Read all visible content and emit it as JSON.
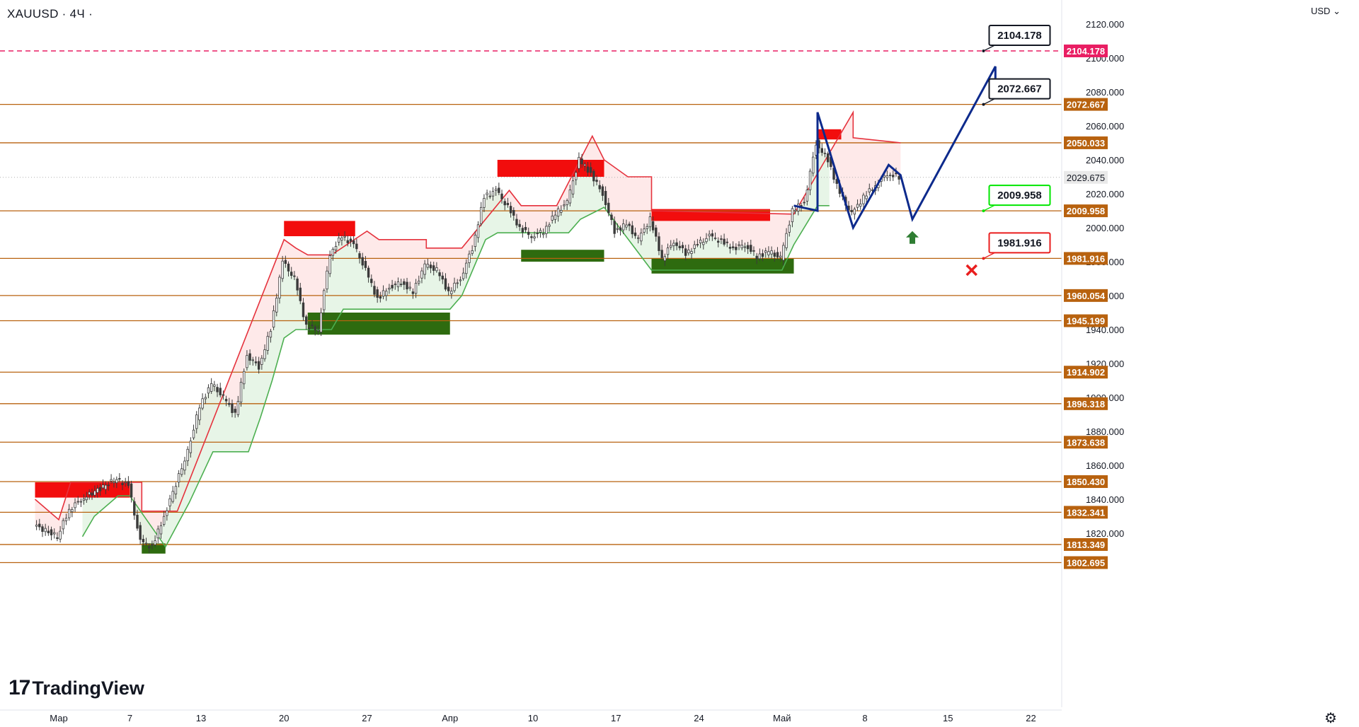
{
  "header": {
    "symbol": "XAUUSD · 4Ч ·",
    "currency": "USD",
    "logo_mark": "17",
    "logo_text": "TradingView",
    "settings_icon": "gear-icon"
  },
  "chart_data": {
    "type": "candlestick",
    "symbol": "XAUUSD",
    "timeframe": "4Ч",
    "currency": "USD",
    "y_range": [
      1800,
      2128
    ],
    "x_ticks": [
      {
        "label": "Мар",
        "date": "2023-03-01"
      },
      {
        "label": "7",
        "date": "2023-03-07"
      },
      {
        "label": "13",
        "date": "2023-03-13"
      },
      {
        "label": "20",
        "date": "2023-03-20"
      },
      {
        "label": "27",
        "date": "2023-03-27"
      },
      {
        "label": "Апр",
        "date": "2023-04-03"
      },
      {
        "label": "10",
        "date": "2023-04-10"
      },
      {
        "label": "17",
        "date": "2023-04-17"
      },
      {
        "label": "24",
        "date": "2023-04-24"
      },
      {
        "label": "Май",
        "date": "2023-05-01"
      },
      {
        "label": "8",
        "date": "2023-05-08"
      },
      {
        "label": "15",
        "date": "2023-05-15"
      },
      {
        "label": "22",
        "date": "2023-05-22"
      }
    ],
    "y_ticks": [
      "2120.000",
      "2100.000",
      "2080.000",
      "2060.000",
      "2040.000",
      "2020.000",
      "2000.000",
      "1980.000",
      "1960.000",
      "1940.000",
      "1920.000",
      "1900.000",
      "1880.000",
      "1860.000",
      "1840.000",
      "1820.000"
    ],
    "current_price": {
      "value": 2029.675,
      "label": "2029.675",
      "color": "#9e9e9e"
    },
    "levels": [
      {
        "value": 2104.178,
        "label": "2104.178",
        "style": "dashed",
        "color": "#e91e63"
      },
      {
        "value": 2072.667,
        "label": "2072.667",
        "style": "solid",
        "color": "#b8620f"
      },
      {
        "value": 2050.033,
        "label": "2050.033",
        "style": "solid",
        "color": "#b8620f"
      },
      {
        "value": 2009.958,
        "label": "2009.958",
        "style": "solid",
        "color": "#b8620f"
      },
      {
        "value": 1981.916,
        "label": "1981.916",
        "style": "solid",
        "color": "#b8620f"
      },
      {
        "value": 1960.054,
        "label": "1960.054",
        "style": "solid",
        "color": "#b8620f"
      },
      {
        "value": 1945.199,
        "label": "1945.199",
        "style": "solid",
        "color": "#b8620f"
      },
      {
        "value": 1914.902,
        "label": "1914.902",
        "style": "solid",
        "color": "#b8620f"
      },
      {
        "value": 1896.318,
        "label": "1896.318",
        "style": "solid",
        "color": "#b8620f"
      },
      {
        "value": 1873.638,
        "label": "1873.638",
        "style": "solid",
        "color": "#b8620f"
      },
      {
        "value": 1850.43,
        "label": "1850.430",
        "style": "solid",
        "color": "#b8620f"
      },
      {
        "value": 1832.341,
        "label": "1832.341",
        "style": "solid",
        "color": "#b8620f"
      },
      {
        "value": 1813.349,
        "label": "1813.349",
        "style": "solid",
        "color": "#b8620f"
      },
      {
        "value": 1802.695,
        "label": "1802.695",
        "style": "solid",
        "color": "#b8620f"
      }
    ],
    "callouts": [
      {
        "label": "2104.178",
        "value": 2104.178,
        "date": "2023-05-18",
        "border": "#131722"
      },
      {
        "label": "2072.667",
        "value": 2072.667,
        "date": "2023-05-18",
        "border": "#131722"
      },
      {
        "label": "2009.958",
        "value": 2009.958,
        "date": "2023-05-18",
        "border": "#00e600"
      },
      {
        "label": "1981.916",
        "value": 1981.916,
        "date": "2023-05-18",
        "border": "#e91e1e"
      }
    ],
    "supply_zones": [
      {
        "start": "2023-02-27",
        "end": "2023-03-07",
        "top": 1850,
        "bottom": 1841
      },
      {
        "start": "2023-03-20",
        "end": "2023-03-26",
        "top": 2004,
        "bottom": 1995
      },
      {
        "start": "2023-04-07",
        "end": "2023-04-16",
        "top": 2040,
        "bottom": 2030
      },
      {
        "start": "2023-04-20",
        "end": "2023-04-30",
        "top": 2011,
        "bottom": 2004
      },
      {
        "start": "2023-05-04",
        "end": "2023-05-06",
        "top": 2058,
        "bottom": 2052
      }
    ],
    "demand_zones": [
      {
        "start": "2023-03-08",
        "end": "2023-03-10",
        "top": 1814,
        "bottom": 1808
      },
      {
        "start": "2023-03-22",
        "end": "2023-04-03",
        "top": 1950,
        "bottom": 1937
      },
      {
        "start": "2023-04-09",
        "end": "2023-04-16",
        "top": 1987,
        "bottom": 1980
      },
      {
        "start": "2023-04-20",
        "end": "2023-05-02",
        "top": 1982,
        "bottom": 1973
      }
    ],
    "projection_path": [
      {
        "date": "2023-05-02",
        "value": 2013
      },
      {
        "date": "2023-05-04",
        "value": 2010
      },
      {
        "date": "2023-05-04",
        "value": 2068
      },
      {
        "date": "2023-05-07",
        "value": 2000
      },
      {
        "date": "2023-05-10",
        "value": 2037
      },
      {
        "date": "2023-05-11",
        "value": 2031
      },
      {
        "date": "2023-05-12",
        "value": 2005
      },
      {
        "date": "2023-05-19",
        "value": 2095
      },
      {
        "date": "2023-05-19",
        "value": 2088
      }
    ],
    "markers": [
      {
        "type": "up-arrow",
        "date": "2023-05-12",
        "value": 1998,
        "color": "#2e7d32"
      },
      {
        "type": "cross",
        "date": "2023-05-17",
        "value": 1975,
        "color": "#e91e1e"
      }
    ],
    "price_path": [
      {
        "date": "2023-02-27",
        "value": 1825
      },
      {
        "date": "2023-03-01",
        "value": 1818
      },
      {
        "date": "2023-03-02",
        "value": 1834
      },
      {
        "date": "2023-03-03",
        "value": 1840
      },
      {
        "date": "2023-03-06",
        "value": 1852
      },
      {
        "date": "2023-03-07",
        "value": 1848
      },
      {
        "date": "2023-03-08",
        "value": 1815
      },
      {
        "date": "2023-03-09",
        "value": 1812
      },
      {
        "date": "2023-03-10",
        "value": 1830
      },
      {
        "date": "2023-03-12",
        "value": 1868
      },
      {
        "date": "2023-03-13",
        "value": 1895
      },
      {
        "date": "2023-03-14",
        "value": 1908
      },
      {
        "date": "2023-03-15",
        "value": 1900
      },
      {
        "date": "2023-03-16",
        "value": 1890
      },
      {
        "date": "2023-03-17",
        "value": 1925
      },
      {
        "date": "2023-03-18",
        "value": 1918
      },
      {
        "date": "2023-03-19",
        "value": 1940
      },
      {
        "date": "2023-03-20",
        "value": 1980
      },
      {
        "date": "2023-03-21",
        "value": 1970
      },
      {
        "date": "2023-03-22",
        "value": 1942
      },
      {
        "date": "2023-03-23",
        "value": 1940
      },
      {
        "date": "2023-03-24",
        "value": 1985
      },
      {
        "date": "2023-03-25",
        "value": 1995
      },
      {
        "date": "2023-03-26",
        "value": 1990
      },
      {
        "date": "2023-03-27",
        "value": 1975
      },
      {
        "date": "2023-03-28",
        "value": 1958
      },
      {
        "date": "2023-03-29",
        "value": 1965
      },
      {
        "date": "2023-03-30",
        "value": 1968
      },
      {
        "date": "2023-03-31",
        "value": 1962
      },
      {
        "date": "2023-04-01",
        "value": 1978
      },
      {
        "date": "2023-04-02",
        "value": 1975
      },
      {
        "date": "2023-04-03",
        "value": 1962
      },
      {
        "date": "2023-04-04",
        "value": 1970
      },
      {
        "date": "2023-04-05",
        "value": 1988
      },
      {
        "date": "2023-04-06",
        "value": 2018
      },
      {
        "date": "2023-04-07",
        "value": 2022
      },
      {
        "date": "2023-04-08",
        "value": 2012
      },
      {
        "date": "2023-04-09",
        "value": 2000
      },
      {
        "date": "2023-04-10",
        "value": 1995
      },
      {
        "date": "2023-04-11",
        "value": 1998
      },
      {
        "date": "2023-04-12",
        "value": 2008
      },
      {
        "date": "2023-04-13",
        "value": 2015
      },
      {
        "date": "2023-04-14",
        "value": 2040
      },
      {
        "date": "2023-04-15",
        "value": 2032
      },
      {
        "date": "2023-04-16",
        "value": 2020
      },
      {
        "date": "2023-04-17",
        "value": 1998
      },
      {
        "date": "2023-04-18",
        "value": 2002
      },
      {
        "date": "2023-04-19",
        "value": 1993
      },
      {
        "date": "2023-04-20",
        "value": 2005
      },
      {
        "date": "2023-04-21",
        "value": 1982
      },
      {
        "date": "2023-04-22",
        "value": 1992
      },
      {
        "date": "2023-04-23",
        "value": 1985
      },
      {
        "date": "2023-04-24",
        "value": 1990
      },
      {
        "date": "2023-04-25",
        "value": 1995
      },
      {
        "date": "2023-04-26",
        "value": 1992
      },
      {
        "date": "2023-04-27",
        "value": 1988
      },
      {
        "date": "2023-04-28",
        "value": 1990
      },
      {
        "date": "2023-04-29",
        "value": 1983
      },
      {
        "date": "2023-04-30",
        "value": 1986
      },
      {
        "date": "2023-05-01",
        "value": 1982
      },
      {
        "date": "2023-05-02",
        "value": 2010
      },
      {
        "date": "2023-05-03",
        "value": 2015
      },
      {
        "date": "2023-05-04",
        "value": 2050
      },
      {
        "date": "2023-05-05",
        "value": 2040
      },
      {
        "date": "2023-05-06",
        "value": 2020
      },
      {
        "date": "2023-05-07",
        "value": 2008
      },
      {
        "date": "2023-05-08",
        "value": 2018
      },
      {
        "date": "2023-05-09",
        "value": 2025
      },
      {
        "date": "2023-05-10",
        "value": 2032
      },
      {
        "date": "2023-05-11",
        "value": 2029.675
      }
    ],
    "resistance_line": [
      {
        "date": "2023-02-27",
        "value": 1840
      },
      {
        "date": "2023-03-01",
        "value": 1828
      },
      {
        "date": "2023-03-02",
        "value": 1850
      },
      {
        "date": "2023-03-08",
        "value": 1850
      },
      {
        "date": "2023-03-08",
        "value": 1833
      },
      {
        "date": "2023-03-11",
        "value": 1833
      },
      {
        "date": "2023-03-20",
        "value": 1993
      },
      {
        "date": "2023-03-21",
        "value": 1988
      },
      {
        "date": "2023-03-22",
        "value": 1984
      },
      {
        "date": "2023-03-24",
        "value": 1984
      },
      {
        "date": "2023-03-27",
        "value": 1998
      },
      {
        "date": "2023-03-28",
        "value": 1993
      },
      {
        "date": "2023-04-01",
        "value": 1993
      },
      {
        "date": "2023-04-01",
        "value": 1988
      },
      {
        "date": "2023-04-04",
        "value": 1988
      },
      {
        "date": "2023-04-08",
        "value": 2022
      },
      {
        "date": "2023-04-09",
        "value": 2013
      },
      {
        "date": "2023-04-12",
        "value": 2013
      },
      {
        "date": "2023-04-15",
        "value": 2054
      },
      {
        "date": "2023-04-16",
        "value": 2040
      },
      {
        "date": "2023-04-18",
        "value": 2030
      },
      {
        "date": "2023-04-20",
        "value": 2030
      },
      {
        "date": "2023-04-20",
        "value": 2010
      },
      {
        "date": "2023-05-02",
        "value": 2008
      },
      {
        "date": "2023-05-07",
        "value": 2068
      },
      {
        "date": "2023-05-07",
        "value": 2053
      },
      {
        "date": "2023-05-11",
        "value": 2050
      }
    ],
    "support_line": [
      {
        "date": "2023-03-03",
        "value": 1818
      },
      {
        "date": "2023-03-04",
        "value": 1830
      },
      {
        "date": "2023-03-06",
        "value": 1842
      },
      {
        "date": "2023-03-07",
        "value": 1842
      },
      {
        "date": "2023-03-10",
        "value": 1812
      },
      {
        "date": "2023-03-12",
        "value": 1838
      },
      {
        "date": "2023-03-14",
        "value": 1868
      },
      {
        "date": "2023-03-17",
        "value": 1868
      },
      {
        "date": "2023-03-18",
        "value": 1888
      },
      {
        "date": "2023-03-19",
        "value": 1910
      },
      {
        "date": "2023-03-20",
        "value": 1935
      },
      {
        "date": "2023-03-21",
        "value": 1940
      },
      {
        "date": "2023-03-24",
        "value": 1940
      },
      {
        "date": "2023-03-25",
        "value": 1952
      },
      {
        "date": "2023-04-03",
        "value": 1952
      },
      {
        "date": "2023-04-04",
        "value": 1960
      },
      {
        "date": "2023-04-06",
        "value": 1993
      },
      {
        "date": "2023-04-07",
        "value": 1997
      },
      {
        "date": "2023-04-13",
        "value": 1997
      },
      {
        "date": "2023-04-14",
        "value": 2005
      },
      {
        "date": "2023-04-16",
        "value": 2012
      },
      {
        "date": "2023-04-20",
        "value": 1975
      },
      {
        "date": "2023-05-01",
        "value": 1975
      },
      {
        "date": "2023-05-02",
        "value": 1990
      },
      {
        "date": "2023-05-04",
        "value": 2013
      },
      {
        "date": "2023-05-05",
        "value": 2013
      }
    ]
  }
}
